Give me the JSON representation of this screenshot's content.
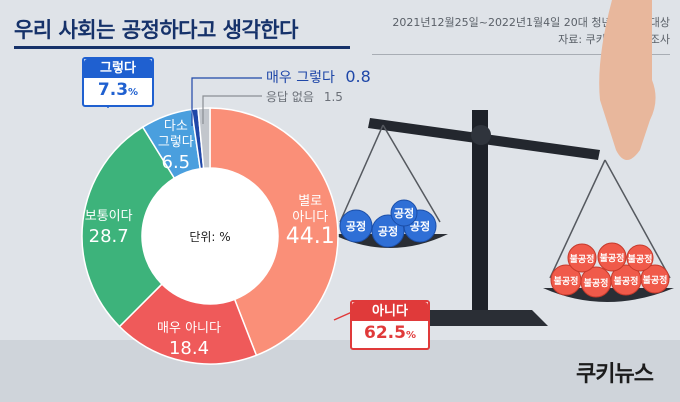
{
  "header": {
    "title": "우리 사회는 공정하다고 생각한다",
    "survey_period": "2021년12월25일~2022년1월4일  20대 청년 261명 대상",
    "source": "자료: 쿠키뉴스 자체조사"
  },
  "callouts": {
    "agree": {
      "label": "그렇다",
      "value": "7.3",
      "unit": "%"
    },
    "disagree": {
      "label": "아니다",
      "value": "62.5",
      "unit": "%"
    }
  },
  "outside_labels": {
    "strongly_agree": {
      "label": "매우 그렇다",
      "value": "0.8"
    },
    "no_answer": {
      "label": "응답 없음",
      "value": "1.5"
    }
  },
  "scale": {
    "left_balls": [
      "공정",
      "공정",
      "공정",
      "공정"
    ],
    "right_balls": [
      "불공정",
      "불공정",
      "불공정",
      "불공정",
      "불공정",
      "불공정",
      "불공정"
    ]
  },
  "logo": "쿠키뉴스",
  "chart_data": {
    "type": "pie",
    "donut": true,
    "center_label": "단위: %",
    "slices": [
      {
        "label": "별로 아니다",
        "value": 44.1,
        "color": "#fa8f78"
      },
      {
        "label": "매우 아니다",
        "value": 18.4,
        "color": "#ef5a5a"
      },
      {
        "label": "보통이다",
        "value": 28.7,
        "color": "#3db37b"
      },
      {
        "label": "다소 그렇다",
        "value": 6.5,
        "color": "#4a9fde"
      },
      {
        "label": "매우 그렇다",
        "value": 0.8,
        "color": "#1f47a8"
      },
      {
        "label": "응답 없음",
        "value": 1.5,
        "color": "#c2c6cc"
      }
    ]
  }
}
